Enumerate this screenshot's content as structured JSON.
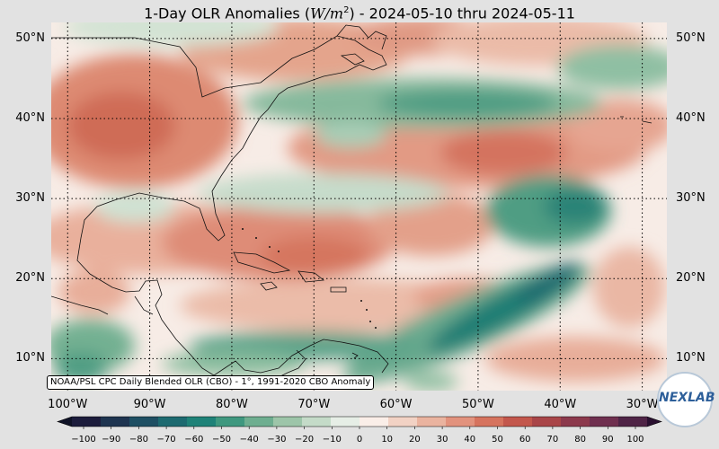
{
  "title_main": "1-Day OLR Anomalies (",
  "title_unit": "W/m",
  "title_exp": "2",
  "title_close": ")",
  "title_dates": " - 2024-05-10 thru 2024-05-11",
  "source_note": "NOAA/PSL CPC Daily Blended OLR (CBO) - 1°, 1991-2020 CBO Anomaly",
  "logo_text": "NEXLAB",
  "lat_labels": [
    "50°N",
    "40°N",
    "30°N",
    "20°N",
    "10°N"
  ],
  "lon_labels": [
    "100°W",
    "90°W",
    "80°W",
    "70°W",
    "60°W",
    "50°W",
    "40°W",
    "30°W"
  ],
  "colorbar": {
    "ticks": [
      "−100",
      "−90",
      "−80",
      "−70",
      "−60",
      "−50",
      "−40",
      "−30",
      "−20",
      "−10",
      "0",
      "10",
      "20",
      "30",
      "40",
      "50",
      "60",
      "70",
      "80",
      "90",
      "100"
    ],
    "colors": [
      "#1c1c3c",
      "#1e3450",
      "#1e4f63",
      "#1d6a70",
      "#1f8278",
      "#3f987f",
      "#6eae90",
      "#9dc5a9",
      "#c4dbc8",
      "#e6eee6",
      "#faeee8",
      "#f2d2c4",
      "#eab39f",
      "#e2927d",
      "#d6735e",
      "#c3574c",
      "#a94548",
      "#8c394c",
      "#6f2f4f",
      "#4f2446"
    ]
  },
  "map": {
    "lon_range": [
      -102,
      -27
    ],
    "lat_range": [
      6,
      52
    ],
    "graticule_lats": [
      50,
      40,
      30,
      20,
      10
    ],
    "graticule_lons": [
      -100,
      -90,
      -80,
      -70,
      -60,
      -50,
      -40,
      -30
    ]
  }
}
